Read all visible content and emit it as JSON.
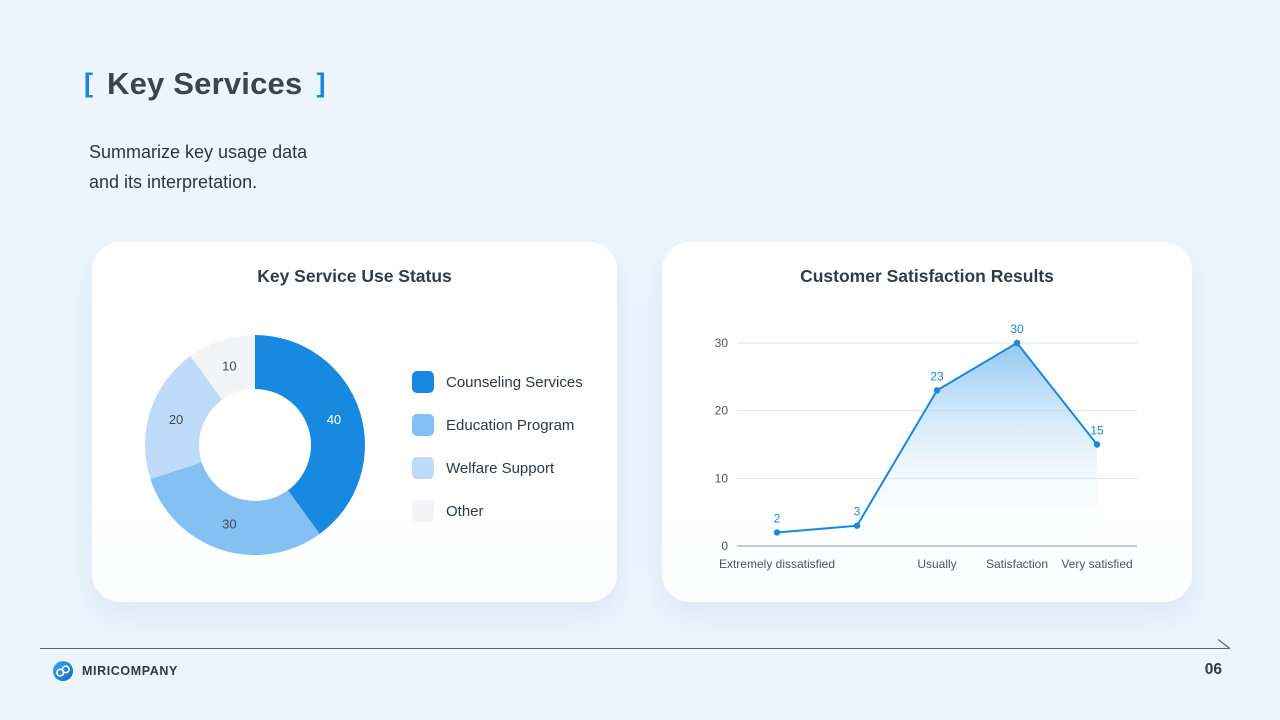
{
  "header": {
    "bracket_left": "[",
    "bracket_right": "]",
    "title": "Key Services",
    "subtitle_line1": "Summarize key usage data",
    "subtitle_line2": "and its interpretation."
  },
  "footer": {
    "brand": "MIRICOMPANY",
    "page_number": "06"
  },
  "colors": {
    "accent_blue": "#1789e0",
    "background": "#edf5fc",
    "text_dark": "#3b4550",
    "axis_text": "#4a5560"
  },
  "chart_data": [
    {
      "type": "pie",
      "donut": true,
      "title": "Key Service Use Status",
      "categories": [
        "Counseling Services",
        "Education Program",
        "Welfare Support",
        "Other"
      ],
      "values": [
        40,
        30,
        20,
        10
      ],
      "colors": [
        "#1789e0",
        "#84c0f2",
        "#bedcf7",
        "#f3f4f6"
      ],
      "label_colors": [
        "#ffffff",
        "#3f4a56",
        "#3f4a56",
        "#3f4a56"
      ],
      "legend_position": "right",
      "start_angle": "top",
      "direction": "clockwise"
    },
    {
      "type": "line",
      "area": true,
      "title": "Customer Satisfaction Results",
      "categories": [
        "Extremely dissatisfied",
        "",
        "Usually",
        "Satisfaction",
        "Very satisfied"
      ],
      "values": [
        2,
        3,
        23,
        30,
        15
      ],
      "ylim": [
        0,
        30
      ],
      "yticks": [
        0,
        10,
        20,
        30
      ],
      "grid": true,
      "line_color": "#1789e0",
      "legend_position": "none"
    }
  ]
}
